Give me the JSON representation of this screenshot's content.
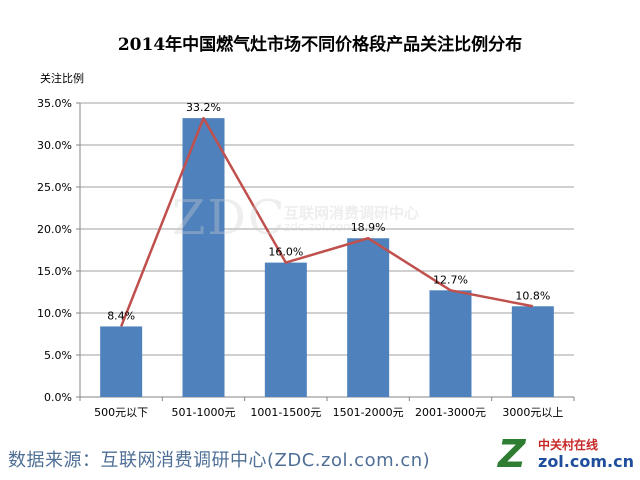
{
  "chart_data": {
    "type": "bar",
    "title": "2014年中国燃气灶市场不同价格段产品关注比例分布",
    "ylabel": "关注比例",
    "xlabel": "",
    "categories": [
      "500元以下",
      "501-1000元",
      "1001-1500元",
      "1501-2000元",
      "2001-3000元",
      "3000元以上"
    ],
    "values": [
      8.4,
      33.2,
      16.0,
      18.9,
      12.7,
      10.8
    ],
    "data_labels": [
      "8.4%",
      "33.2%",
      "16.0%",
      "18.9%",
      "12.7%",
      "10.8%"
    ],
    "overlay_line": true,
    "ylim": [
      0,
      35
    ],
    "yticks": [
      "0.0%",
      "5.0%",
      "10.0%",
      "15.0%",
      "20.0%",
      "25.0%",
      "30.0%",
      "35.0%"
    ],
    "grid": true,
    "colors": {
      "bar": "#4f81bd",
      "line": "#c0504d"
    }
  },
  "source_text": "数据来源：互联网消费调研中心(ZDC.zol.com.cn)",
  "watermark": {
    "big": "ZDC",
    "cn": "互联网消费调研中心",
    "url": "zdc.zol.com.cn"
  },
  "logo": {
    "mark": "Z",
    "cn": "中关村在线",
    "en": "zol.com.cn"
  }
}
